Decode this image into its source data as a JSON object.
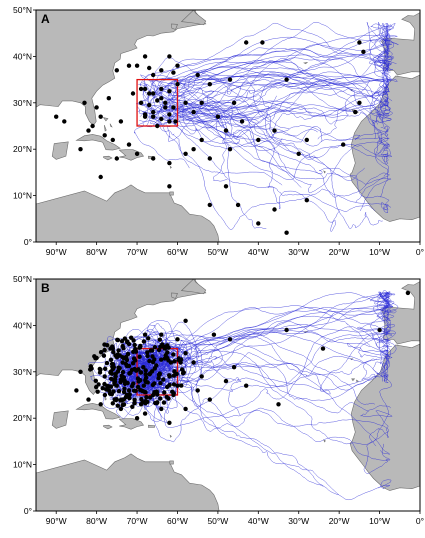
{
  "chart_data": [
    {
      "type": "map-trajectories",
      "panel_label": "A",
      "lon_range": [
        -95,
        0
      ],
      "lat_range": [
        0,
        50
      ],
      "lon_ticks": [
        -90,
        -80,
        -70,
        -60,
        -50,
        -40,
        -30,
        -20,
        -10,
        0
      ],
      "lat_ticks": [
        0,
        10,
        20,
        30,
        40,
        50
      ],
      "lon_tick_labels": [
        "90°W",
        "80°W",
        "70°W",
        "60°W",
        "50°W",
        "40°W",
        "30°W",
        "20°W",
        "10°W",
        "0°"
      ],
      "lat_tick_labels": [
        "0°",
        "10°N",
        "20°N",
        "30°N",
        "40°N",
        "50°N"
      ],
      "release_box": {
        "lon": [
          -70,
          -60
        ],
        "lat": [
          25,
          35
        ]
      },
      "colors": {
        "land": "#b9b9b9",
        "ocean": "#ffffff",
        "tracks": "#2b2bd6",
        "box": "#e01010",
        "endpoints": "#000000"
      },
      "endpoints": [
        [
          -43,
          43
        ],
        [
          -39,
          43
        ],
        [
          -15,
          43
        ],
        [
          -14,
          41
        ],
        [
          -68,
          40
        ],
        [
          -62,
          40
        ],
        [
          -55,
          36
        ],
        [
          -47,
          35
        ],
        [
          -33,
          35
        ],
        [
          -72,
          38
        ],
        [
          -70,
          38
        ],
        [
          -67,
          37.5
        ],
        [
          -64,
          37
        ],
        [
          -61,
          36.5
        ],
        [
          -75,
          37
        ],
        [
          -66,
          36
        ],
        [
          -60,
          34
        ],
        [
          -69,
          33
        ],
        [
          -67,
          32
        ],
        [
          -64,
          31
        ],
        [
          -63,
          29
        ],
        [
          -66,
          28
        ],
        [
          -68,
          27
        ],
        [
          -62,
          26
        ],
        [
          -65,
          25
        ],
        [
          -71,
          32
        ],
        [
          -58,
          30
        ],
        [
          -56,
          28
        ],
        [
          -54,
          30
        ],
        [
          -50,
          27
        ],
        [
          -48,
          24
        ],
        [
          -44,
          26
        ],
        [
          -40,
          22
        ],
        [
          -36,
          24
        ],
        [
          -28,
          22
        ],
        [
          -19,
          21
        ],
        [
          -15,
          30
        ],
        [
          -16,
          28
        ],
        [
          -80,
          29
        ],
        [
          -79,
          27
        ],
        [
          -81,
          25
        ],
        [
          -78,
          23
        ],
        [
          -82,
          24
        ],
        [
          -84,
          20
        ],
        [
          -90,
          27
        ],
        [
          -88,
          26
        ],
        [
          -74,
          26
        ],
        [
          -76,
          22
        ],
        [
          -72,
          21
        ],
        [
          -70,
          19
        ],
        [
          -66,
          18
        ],
        [
          -62,
          17
        ],
        [
          -58,
          19
        ],
        [
          -56,
          20
        ],
        [
          -52,
          18
        ],
        [
          -75,
          18
        ],
        [
          -79,
          14
        ],
        [
          -62,
          12
        ],
        [
          -52,
          8
        ],
        [
          -48,
          12
        ],
        [
          -45,
          8
        ],
        [
          -36,
          7
        ],
        [
          -33,
          2
        ],
        [
          -28,
          9
        ],
        [
          -40,
          4
        ],
        [
          -54,
          22
        ],
        [
          -47,
          20
        ],
        [
          -30,
          19
        ],
        [
          -83,
          30
        ],
        [
          -77,
          31
        ],
        [
          -60,
          38
        ],
        [
          -52,
          34
        ],
        [
          -46,
          30
        ]
      ],
      "box_endpoints": [
        [
          -68,
          33
        ],
        [
          -66,
          32
        ],
        [
          -64,
          33
        ],
        [
          -62,
          32.5
        ],
        [
          -69,
          30
        ],
        [
          -67,
          29.5
        ],
        [
          -65,
          30.5
        ],
        [
          -63,
          30
        ],
        [
          -61,
          29
        ],
        [
          -68,
          27.5
        ],
        [
          -66,
          27
        ],
        [
          -64,
          26.5
        ],
        [
          -62,
          27.5
        ],
        [
          -60.5,
          26
        ]
      ]
    },
    {
      "type": "map-trajectories",
      "panel_label": "B",
      "lon_range": [
        -95,
        0
      ],
      "lat_range": [
        0,
        50
      ],
      "lon_ticks": [
        -90,
        -80,
        -70,
        -60,
        -50,
        -40,
        -30,
        -20,
        -10,
        0
      ],
      "lat_ticks": [
        0,
        10,
        20,
        30,
        40,
        50
      ],
      "lon_tick_labels": [
        "90°W",
        "80°W",
        "70°W",
        "60°W",
        "50°W",
        "40°W",
        "30°W",
        "20°W",
        "10°W",
        "0°"
      ],
      "lat_tick_labels": [
        "0°",
        "10°N",
        "20°N",
        "30°N",
        "40°N",
        "50°N"
      ],
      "release_box": {
        "lon": [
          -70,
          -60
        ],
        "lat": [
          25,
          35
        ]
      },
      "colors": {
        "land": "#b9b9b9",
        "ocean": "#ffffff",
        "tracks": "#2b2bd6",
        "box": "#e01010",
        "endpoints": "#000000"
      },
      "endpoints": [
        [
          -3,
          47
        ],
        [
          -58,
          41
        ],
        [
          -51,
          38
        ],
        [
          -47,
          37
        ],
        [
          -33,
          39
        ],
        [
          -10,
          39
        ],
        [
          -24,
          35
        ],
        [
          -35,
          23
        ],
        [
          -43,
          27
        ],
        [
          -48,
          28
        ],
        [
          -54,
          29
        ],
        [
          -56,
          32
        ],
        [
          -58,
          34
        ],
        [
          -55,
          26
        ],
        [
          -52,
          24
        ],
        [
          -58,
          22
        ],
        [
          -64,
          22
        ],
        [
          -69,
          23
        ],
        [
          -74,
          22
        ],
        [
          -79,
          23
        ],
        [
          -82,
          24
        ],
        [
          -85,
          26
        ],
        [
          -84,
          30
        ],
        [
          -80,
          33
        ],
        [
          -76,
          35
        ],
        [
          -72,
          36
        ],
        [
          -68,
          38
        ],
        [
          -64,
          38
        ],
        [
          -60,
          37
        ],
        [
          -78,
          29
        ],
        [
          -75,
          27
        ],
        [
          -72,
          26
        ],
        [
          -66,
          25
        ],
        [
          -61,
          25
        ],
        [
          -70,
          20
        ],
        [
          -68,
          21
        ],
        [
          -62,
          19
        ],
        [
          -60,
          27
        ],
        [
          -46,
          31
        ]
      ],
      "dense_center": [
        -70,
        30
      ],
      "dense_count": 230
    }
  ]
}
